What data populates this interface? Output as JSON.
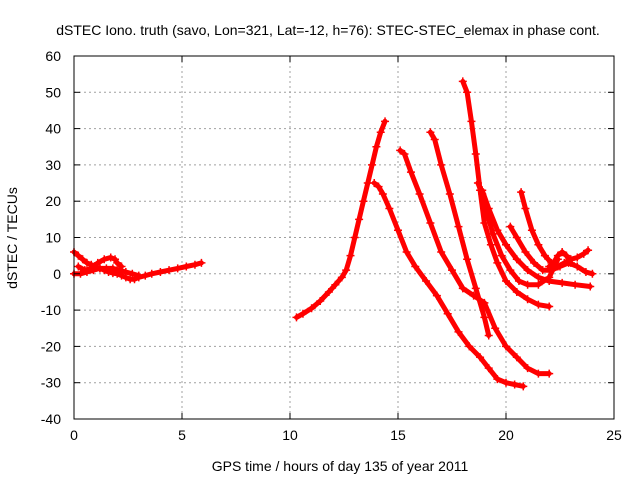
{
  "chart_data": {
    "type": "line",
    "title": "dSTEC Iono. truth (savo, Lon=321, Lat=-12, h=76): STEC-STEC_elemax in phase cont.",
    "xlabel": "GPS time / hours of day 135 of year 2011",
    "ylabel": "dSTEC  / TECUs",
    "xlim": [
      0,
      25
    ],
    "ylim": [
      -40,
      60
    ],
    "xticks": [
      0,
      5,
      10,
      15,
      20,
      25
    ],
    "yticks": [
      -40,
      -30,
      -20,
      -10,
      0,
      10,
      20,
      30,
      40,
      50,
      60
    ],
    "grid": true,
    "series_color": "#ff0000",
    "marker": "plus",
    "series": [
      {
        "x": [
          0.0,
          0.2,
          0.4,
          0.6,
          0.8,
          1.0,
          1.2,
          1.4,
          1.6,
          1.8,
          2.0,
          2.2,
          2.4,
          2.6,
          2.8,
          3.0,
          3.3,
          3.6,
          4.0,
          4.4,
          4.8,
          5.2,
          5.6,
          5.9
        ],
        "y": [
          6.0,
          5.0,
          4.0,
          3.0,
          2.5,
          2.0,
          1.5,
          1.0,
          0.5,
          0.2,
          0.0,
          -0.5,
          -1.0,
          -1.5,
          -1.5,
          -1.0,
          -0.5,
          0.0,
          0.5,
          1.0,
          1.5,
          2.0,
          2.5,
          3.0
        ]
      },
      {
        "x": [
          0.0,
          0.3,
          0.6,
          0.9,
          1.2,
          1.5,
          1.8,
          2.1,
          2.4,
          2.7,
          3.0
        ],
        "y": [
          0.0,
          0.0,
          0.5,
          1.0,
          1.5,
          1.5,
          1.5,
          1.0,
          0.5,
          0.0,
          -0.5
        ]
      },
      {
        "x": [
          0.2,
          0.5,
          0.8,
          1.1,
          1.4,
          1.7,
          1.9,
          2.0,
          2.2
        ],
        "y": [
          2.0,
          1.0,
          1.5,
          3.0,
          4.0,
          4.5,
          4.0,
          3.0,
          2.0
        ]
      },
      {
        "x": [
          10.3,
          10.6,
          11.0,
          11.4,
          11.8,
          12.1,
          12.4,
          12.6,
          12.8,
          13.0,
          13.2,
          13.4,
          13.6,
          13.8,
          14.0,
          14.2,
          14.4
        ],
        "y": [
          -12.0,
          -11.0,
          -9.5,
          -7.5,
          -5.0,
          -3.0,
          -1.0,
          1.0,
          5.0,
          10.0,
          15.0,
          20.0,
          25.0,
          30.0,
          35.0,
          39.0,
          42.0
        ]
      },
      {
        "x": [
          13.9,
          14.1,
          14.3,
          14.6,
          15.0,
          15.4,
          15.8,
          16.3,
          16.8,
          17.3,
          17.8,
          18.3,
          18.8,
          19.2,
          19.6,
          20.0,
          20.4,
          20.8
        ],
        "y": [
          25.0,
          24.0,
          22.0,
          18.0,
          12.0,
          6.0,
          2.0,
          -2.0,
          -6.0,
          -11.0,
          -16.0,
          -20.0,
          -23.0,
          -26.0,
          -29.0,
          -30.0,
          -30.5,
          -31.0
        ]
      },
      {
        "x": [
          15.1,
          15.3,
          15.6,
          16.0,
          16.5,
          17.0,
          17.5,
          18.0,
          18.5,
          19.0,
          19.5,
          20.0,
          20.5,
          21.0,
          21.5,
          22.0
        ],
        "y": [
          34.0,
          33.0,
          28.0,
          22.0,
          14.0,
          6.0,
          1.0,
          -4.0,
          -6.0,
          -8.0,
          -15.0,
          -20.0,
          -23.0,
          -26.0,
          -27.5,
          -27.5
        ]
      },
      {
        "x": [
          16.5,
          16.7,
          17.0,
          17.4,
          17.8,
          18.2,
          18.6,
          19.0,
          19.2
        ],
        "y": [
          39.0,
          37.0,
          30.0,
          22.0,
          13.0,
          4.0,
          -4.0,
          -12.0,
          -17.0
        ]
      },
      {
        "x": [
          18.0,
          18.2,
          18.4,
          18.6,
          18.8,
          19.0,
          19.3,
          19.6,
          20.0,
          20.5,
          21.0,
          21.5,
          22.0
        ],
        "y": [
          53.0,
          50.0,
          42.0,
          33.0,
          23.0,
          14.0,
          8.0,
          3.0,
          -2.0,
          -5.0,
          -7.0,
          -8.5,
          -9.0
        ]
      },
      {
        "x": [
          18.7,
          18.9,
          19.1,
          19.4,
          19.8,
          20.2,
          20.6,
          21.0,
          21.5,
          22.0,
          22.4
        ],
        "y": [
          25.0,
          22.0,
          17.0,
          11.0,
          5.0,
          1.0,
          -2.0,
          -3.0,
          -3.0,
          -1.0,
          4.0
        ]
      },
      {
        "x": [
          18.9,
          19.2,
          19.6,
          20.0,
          20.5,
          21.0,
          21.5,
          22.0,
          22.6,
          23.2,
          23.9
        ],
        "y": [
          23.0,
          18.0,
          12.0,
          8.0,
          4.0,
          1.0,
          -1.0,
          -2.0,
          -2.5,
          -3.0,
          -3.5
        ]
      },
      {
        "x": [
          20.2,
          20.5,
          20.9,
          21.3,
          21.7,
          22.1,
          22.5,
          22.9,
          23.3,
          23.7,
          24.0
        ],
        "y": [
          13.0,
          10.0,
          6.0,
          3.0,
          1.0,
          1.0,
          2.0,
          3.0,
          2.0,
          0.5,
          0.0
        ]
      },
      {
        "x": [
          20.7,
          20.9,
          21.2,
          21.5,
          21.8,
          22.1,
          22.4,
          22.7,
          23.0,
          23.3,
          23.6,
          23.8
        ],
        "y": [
          22.5,
          18.0,
          12.0,
          8.0,
          5.0,
          3.0,
          2.0,
          3.0,
          4.0,
          4.5,
          5.5,
          6.5
        ]
      },
      {
        "x": [
          22.0,
          22.2,
          22.4,
          22.6,
          22.8,
          23.0
        ],
        "y": [
          2.0,
          3.0,
          5.0,
          6.0,
          5.0,
          3.0
        ]
      }
    ]
  }
}
